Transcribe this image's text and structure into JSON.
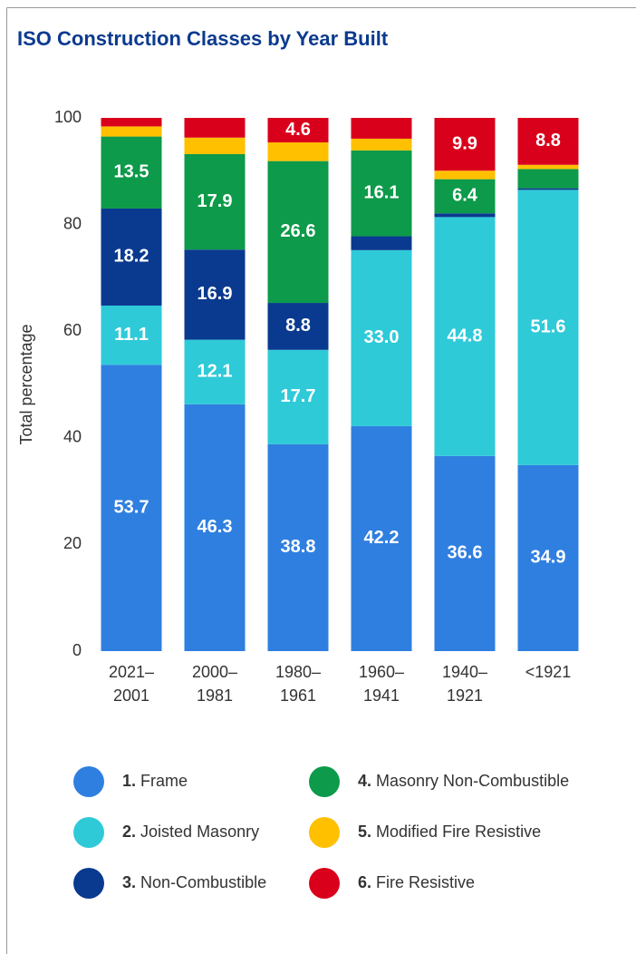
{
  "chart_data": {
    "type": "stacked_bar",
    "title": "ISO Construction Classes by Year Built",
    "y_label": "Total percentage",
    "categories": [
      [
        "2021–",
        "2001"
      ],
      [
        "2000–",
        "1981"
      ],
      [
        "1980–",
        "1961"
      ],
      [
        "1960–",
        "1941"
      ],
      [
        "1940–",
        "1921"
      ],
      [
        "<1921"
      ]
    ],
    "ylim": [
      0,
      100
    ],
    "yticks": [
      0,
      20,
      40,
      60,
      80,
      100
    ],
    "series": [
      {
        "key": "1.",
        "name": "Frame",
        "color": "#2f7fe0",
        "values": [
          53.7,
          46.3,
          38.8,
          42.2,
          36.6,
          34.9
        ],
        "value_labels": [
          "53.7",
          "46.3",
          "38.8",
          "42.2",
          "36.6",
          "34.9"
        ]
      },
      {
        "key": "2.",
        "name": "Joisted Masonry",
        "color": "#2ecad8",
        "values": [
          11.1,
          12.1,
          17.7,
          33.0,
          44.8,
          51.6
        ],
        "value_labels": [
          "11.1",
          "12.1",
          "17.7",
          "33.0",
          "44.8",
          "51.6"
        ]
      },
      {
        "key": "3.",
        "name": "Non-Combustible",
        "color": "#0a3a8f",
        "values": [
          18.2,
          16.9,
          8.8,
          2.6,
          0.7,
          0.3
        ],
        "value_labels": [
          "18.2",
          "16.9",
          "8.8",
          null,
          null,
          null
        ]
      },
      {
        "key": "4.",
        "name": "Masonry Non-Combustible",
        "color": "#0d9a4a",
        "values": [
          13.5,
          17.9,
          26.6,
          16.1,
          6.4,
          3.6
        ],
        "value_labels": [
          "13.5",
          "17.9",
          "26.6",
          "16.1",
          "6.4",
          null
        ]
      },
      {
        "key": "5.",
        "name": "Modified Fire Resistive",
        "color": "#ffc000",
        "values": [
          1.9,
          3.1,
          3.5,
          2.2,
          1.6,
          0.8
        ],
        "value_labels": [
          null,
          null,
          null,
          null,
          null,
          null
        ]
      },
      {
        "key": "6.",
        "name": "Fire Resistive",
        "color": "#d9001b",
        "values": [
          1.6,
          3.7,
          4.6,
          3.9,
          9.9,
          8.8
        ],
        "value_labels": [
          null,
          null,
          "4.6",
          null,
          "9.9",
          "8.8"
        ]
      }
    ]
  }
}
